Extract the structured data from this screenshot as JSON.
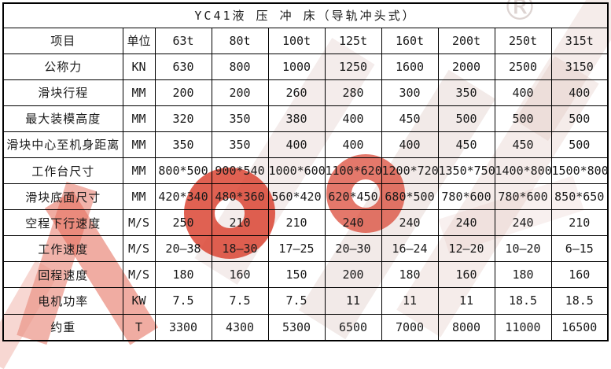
{
  "title": "YC41液 压 冲 床（导轨冲头式）",
  "registered_mark": "®",
  "colors": {
    "border": "#000000",
    "text": "#1a1a1a",
    "watermark_red": "#d93e2c",
    "watermark_pale": "#e9d2cc",
    "background": "#ffffff"
  },
  "table": {
    "header": [
      "项目",
      "单位",
      "63t",
      "80t",
      "100t",
      "125t",
      "160t",
      "200t",
      "250t",
      "315t"
    ],
    "rows": [
      {
        "label": "公称力",
        "unit": "KN",
        "values": [
          "630",
          "800",
          "1000",
          "1250",
          "1600",
          "2000",
          "2500",
          "3150"
        ]
      },
      {
        "label": "滑块行程",
        "unit": "MM",
        "values": [
          "200",
          "200",
          "260",
          "280",
          "300",
          "350",
          "400",
          "400"
        ]
      },
      {
        "label": "最大装模高度",
        "unit": "MM",
        "values": [
          "320",
          "350",
          "380",
          "400",
          "450",
          "500",
          "500",
          "500"
        ]
      },
      {
        "label": "滑块中心至机身距离",
        "unit": "MM",
        "values": [
          "350",
          "350",
          "400",
          "400",
          "400",
          "450",
          "450",
          "500"
        ]
      },
      {
        "label": "工作台尺寸",
        "unit": "MM",
        "values": [
          "800*500",
          "900*540",
          "1000*600",
          "1100*620",
          "1200*720",
          "1350*750",
          "1400*800",
          "1500*800"
        ]
      },
      {
        "label": "滑块底面尺寸",
        "unit": "MM",
        "values": [
          "420*340",
          "480*360",
          "560*420",
          "620*450",
          "680*500",
          "780*600",
          "780*600",
          "850*650"
        ]
      },
      {
        "label": "空程下行速度",
        "unit": "M/S",
        "values": [
          "250",
          "210",
          "210",
          "240",
          "240",
          "240",
          "240",
          "210"
        ]
      },
      {
        "label": "工作速度",
        "unit": "M/S",
        "values": [
          "20—38",
          "18—30",
          "17—25",
          "20—30",
          "16—24",
          "12—20",
          "10—20",
          "6—15"
        ]
      },
      {
        "label": "回程速度",
        "unit": "M/S",
        "values": [
          "180",
          "160",
          "150",
          "200",
          "180",
          "160",
          "180",
          "160"
        ]
      },
      {
        "label": "电机功率",
        "unit": "KW",
        "values": [
          "7.5",
          "7.5",
          "7.5",
          "11",
          "11",
          "11",
          "18.5",
          "18.5"
        ]
      },
      {
        "label": "约重",
        "unit": "T",
        "values": [
          "3300",
          "4300",
          "5300",
          "6500",
          "7000",
          "8000",
          "11000",
          "16500"
        ]
      }
    ]
  }
}
